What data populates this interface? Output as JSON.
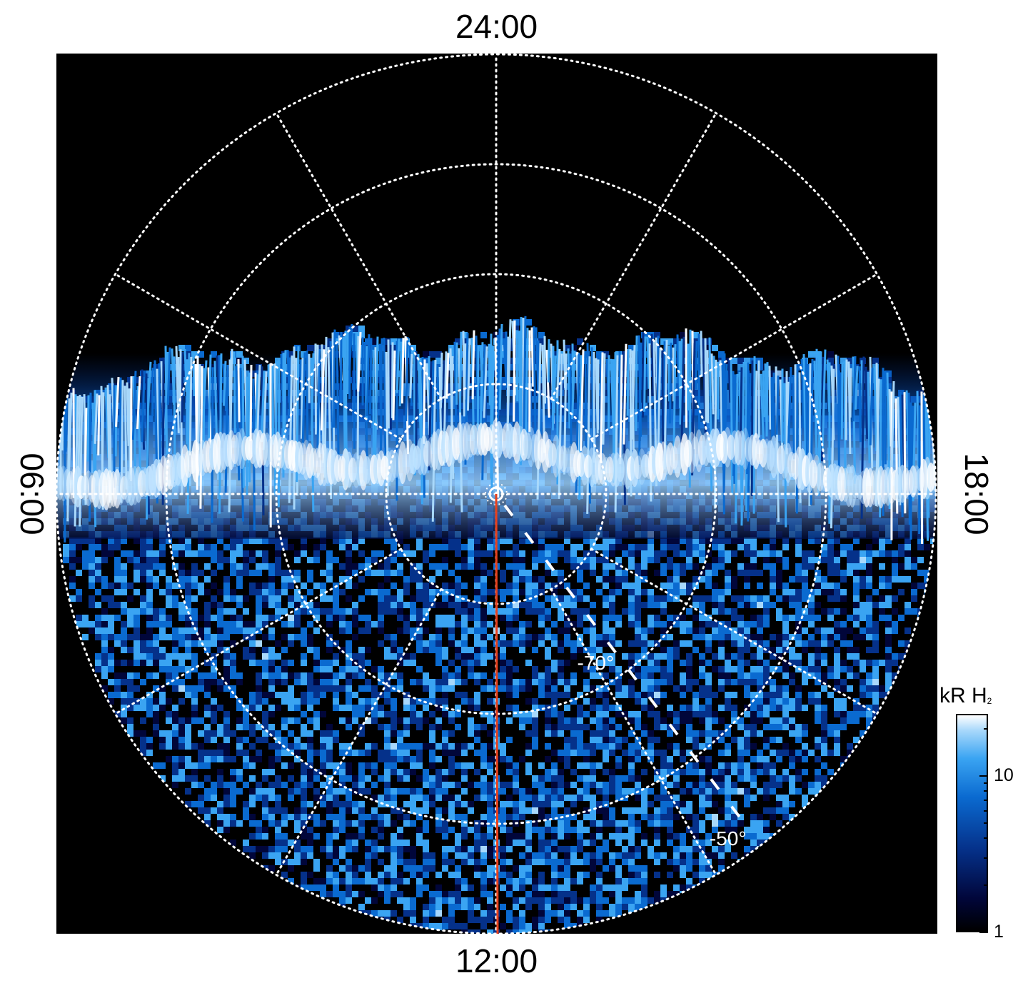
{
  "chart_data": {
    "type": "heatmap",
    "projection": "polar",
    "local_time_labels": {
      "top": "24:00",
      "bottom": "12:00",
      "left": "06:00",
      "right": "18:00"
    },
    "latitude_labels": [
      "-70°",
      "-50°"
    ],
    "latitude_circles": [
      -80,
      -70,
      -60,
      -50
    ],
    "grid": true,
    "reference_line": {
      "color": "#e8401c",
      "from": "pole",
      "to": "12:00"
    },
    "colorbar": {
      "title": "kR H",
      "title_subscript": "2",
      "scale": "log",
      "range": [
        1,
        25
      ],
      "ticks": [
        1,
        10
      ],
      "tick_labels": [
        "1",
        "10"
      ],
      "colors": [
        "#000000",
        "#01063a",
        "#05318a",
        "#0a6ad0",
        "#3aa4f2",
        "#a8d8fb",
        "#ffffff"
      ]
    },
    "background": "#000000"
  }
}
